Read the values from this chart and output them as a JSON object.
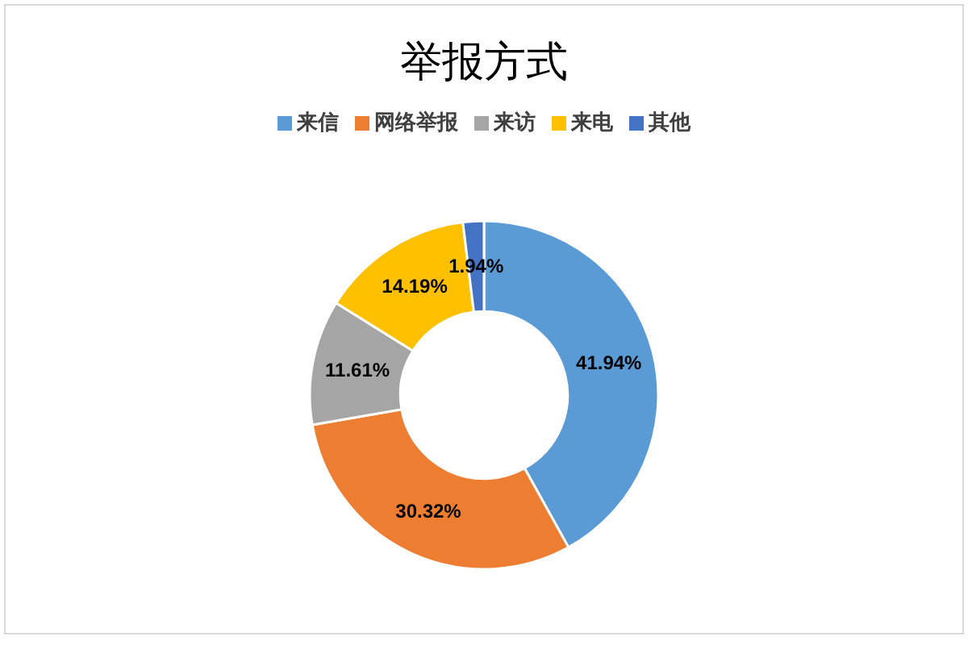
{
  "chart_data": {
    "type": "donut",
    "title": "举报方式",
    "legend": "top",
    "categories": [
      "来信",
      "网络举报",
      "来访",
      "来电",
      "其他"
    ],
    "values": [
      41.94,
      30.32,
      11.61,
      14.19,
      1.94
    ],
    "colors": [
      "#5b9bd5",
      "#ed7d31",
      "#a5a5a5",
      "#ffc000",
      "#4472c4"
    ],
    "value_labels": [
      "41.94%",
      "30.32%",
      "11.61%",
      "14.19%",
      "1.94%"
    ]
  }
}
